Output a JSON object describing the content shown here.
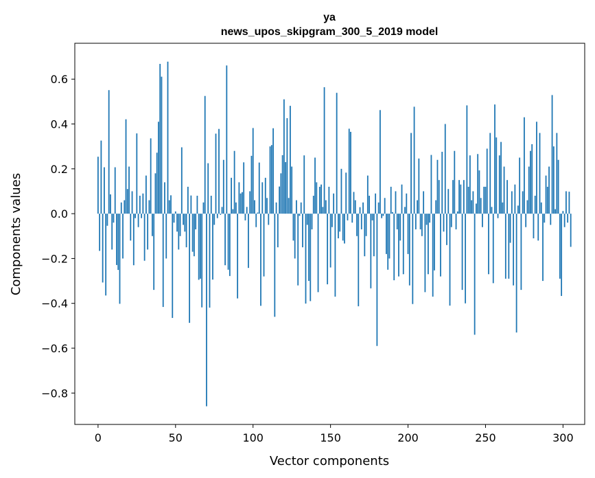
{
  "chart_data": {
    "type": "bar",
    "title": "ya",
    "subtitle": "news_upos_skipgram_300_5_2019 model",
    "xlabel": "Vector components",
    "ylabel": "Components values",
    "xlim": [
      -15,
      314
    ],
    "ylim": [
      -0.94,
      0.76
    ],
    "xticks": [
      0,
      50,
      100,
      150,
      200,
      250,
      300
    ],
    "xtick_labels": [
      "0",
      "50",
      "100",
      "150",
      "200",
      "250",
      "300"
    ],
    "yticks": [
      -0.8,
      -0.6,
      -0.4,
      -0.2,
      0.0,
      0.2,
      0.4,
      0.6
    ],
    "ytick_labels": [
      "−0.8",
      "−0.6",
      "−0.4",
      "−0.2",
      "0.0",
      "0.2",
      "0.4",
      "0.6"
    ],
    "bar_width": 0.8,
    "bar_color": "#1f77b4",
    "values": [
      0.254,
      -0.166,
      0.326,
      -0.307,
      0.207,
      -0.365,
      -0.054,
      0.551,
      0.086,
      -0.16,
      -0.04,
      0.207,
      -0.229,
      -0.251,
      -0.402,
      0.05,
      -0.2,
      0.06,
      0.421,
      0.11,
      0.21,
      -0.12,
      0.1,
      -0.23,
      -0.02,
      0.358,
      -0.06,
      0.08,
      -0.02,
      0.09,
      -0.21,
      0.17,
      -0.16,
      0.06,
      0.336,
      -0.1,
      -0.34,
      0.18,
      0.272,
      0.41,
      0.668,
      0.611,
      -0.416,
      0.14,
      -0.2,
      0.678,
      0.06,
      0.082,
      -0.465,
      -0.04,
      0.01,
      -0.08,
      -0.16,
      -0.1,
      0.296,
      -0.05,
      -0.08,
      -0.15,
      0.12,
      -0.487,
      0.081,
      -0.17,
      -0.19,
      -0.07,
      0.08,
      -0.295,
      -0.29,
      -0.418,
      0.05,
      0.525,
      -0.859,
      0.225,
      -0.419,
      0.08,
      -0.294,
      -0.05,
      0.357,
      -0.02,
      0.378,
      -0.005,
      0.03,
      0.24,
      -0.23,
      0.661,
      -0.25,
      -0.278,
      0.16,
      0.02,
      0.28,
      0.05,
      -0.378,
      0.14,
      0.09,
      0.096,
      0.229,
      -0.03,
      0.03,
      -0.242,
      0.1,
      0.258,
      0.382,
      0.06,
      -0.06,
      0.005,
      0.228,
      -0.411,
      0.14,
      -0.28,
      0.16,
      0.07,
      -0.05,
      0.3,
      0.306,
      0.381,
      -0.46,
      0.05,
      -0.15,
      0.121,
      0.18,
      0.261,
      0.51,
      0.23,
      0.426,
      0.07,
      0.481,
      0.21,
      -0.12,
      -0.2,
      0.06,
      -0.32,
      -0.01,
      0.05,
      -0.15,
      0.26,
      -0.401,
      -0.05,
      -0.3,
      -0.39,
      -0.07,
      0.08,
      0.25,
      0.14,
      -0.35,
      0.12,
      0.13,
      0.03,
      0.564,
      0.06,
      -0.315,
      0.12,
      -0.24,
      -0.06,
      0.09,
      -0.37,
      0.539,
      -0.11,
      -0.08,
      0.2,
      -0.12,
      -0.133,
      0.183,
      -0.03,
      0.379,
      0.365,
      -0.04,
      0.097,
      0.06,
      -0.1,
      -0.413,
      0.029,
      -0.07,
      0.05,
      -0.19,
      -0.1,
      0.17,
      0.08,
      -0.333,
      -0.03,
      -0.19,
      0.09,
      -0.59,
      0.05,
      0.462,
      -0.02,
      -0.01,
      0.07,
      -0.18,
      -0.25,
      -0.2,
      0.12,
      0.007,
      -0.297,
      0.1,
      -0.07,
      -0.28,
      -0.12,
      0.13,
      -0.27,
      0.03,
      0.09,
      -0.18,
      -0.32,
      0.36,
      -0.403,
      0.477,
      -0.07,
      0.06,
      0.246,
      -0.07,
      -0.1,
      0.1,
      -0.35,
      -0.05,
      -0.27,
      -0.04,
      0.262,
      -0.37,
      -0.253,
      0.06,
      0.24,
      0.15,
      -0.28,
      0.276,
      -0.08,
      0.4,
      -0.14,
      0.11,
      -0.41,
      -0.06,
      0.15,
      0.28,
      -0.07,
      0.01,
      0.15,
      0.13,
      -0.34,
      0.15,
      -0.4,
      0.483,
      0.12,
      0.26,
      0.06,
      0.1,
      -0.54,
      0.045,
      0.266,
      0.193,
      0.07,
      -0.06,
      0.12,
      0.12,
      0.29,
      -0.27,
      0.36,
      0.03,
      -0.31,
      0.487,
      0.34,
      -0.02,
      0.26,
      0.32,
      0.05,
      0.21,
      -0.29,
      0.15,
      -0.29,
      -0.13,
      0.1,
      -0.32,
      0.13,
      -0.53,
      0.036,
      0.25,
      -0.34,
      0.1,
      0.43,
      -0.06,
      0.06,
      0.21,
      0.28,
      0.31,
      -0.11,
      0.08,
      0.41,
      -0.12,
      0.36,
      0.05,
      -0.3,
      -0.04,
      0.17,
      0.12,
      0.21,
      -0.05,
      0.529,
      0.3,
      0.02,
      0.36,
      0.24,
      -0.29,
      -0.367,
      0.012,
      -0.06,
      0.1,
      -0.04,
      0.098,
      -0.148
    ]
  }
}
